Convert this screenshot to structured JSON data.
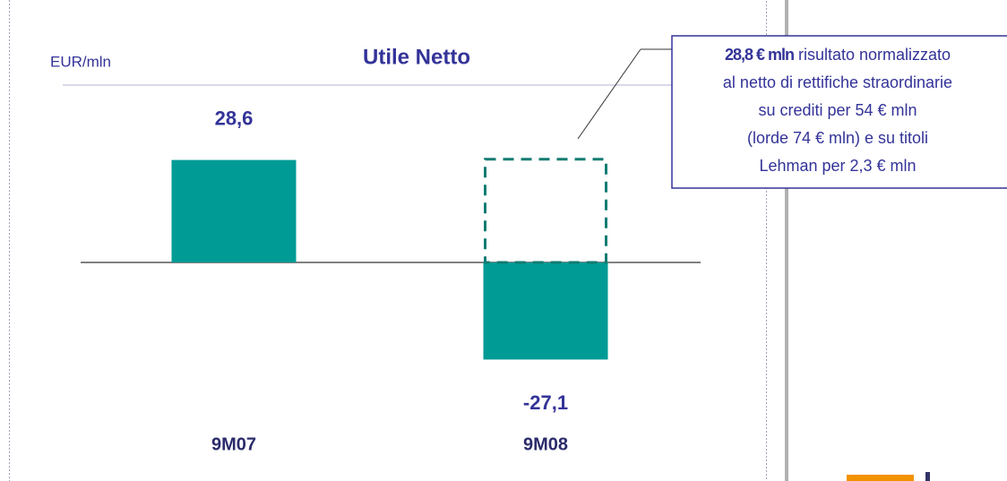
{
  "chart_data": {
    "type": "bar",
    "title": "Utile Netto",
    "unit_label": "EUR/mln",
    "categories": [
      "9M07",
      "9M08"
    ],
    "values": [
      28.6,
      -27.1
    ],
    "value_labels": [
      "28,6",
      "-27,1"
    ],
    "color": "#009b95",
    "normalized_values": [
      null,
      28.8
    ],
    "annotation": {
      "highlight": "28,8 € mln",
      "lines": [
        " risultato normalizzato",
        "al netto di rettifiche straordinarie",
        "su crediti per 54 € mln",
        "(lorde  74 € mln) e su titoli",
        "Lehman per 2,3 € mln"
      ]
    }
  }
}
